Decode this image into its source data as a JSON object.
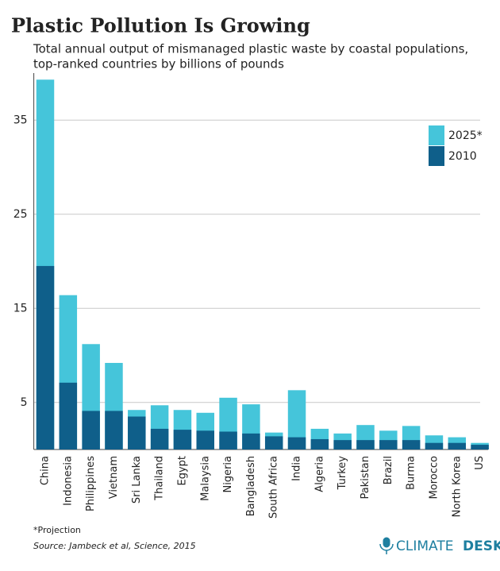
{
  "chart_data": {
    "type": "bar",
    "overlay": true,
    "title": "Plastic Pollution Is Growing",
    "subtitle": [
      "Total annual output of mismanaged plastic waste by coastal populations,",
      "top-ranked countries by billions of pounds"
    ],
    "categories": [
      "China",
      "Indonesia",
      "Philippines",
      "Vietnam",
      "Sri Lanka",
      "Thailand",
      "Egypt",
      "Malaysia",
      "Nigeria",
      "Bangladesh",
      "South Africa",
      "India",
      "Algeria",
      "Turkey",
      "Pakistan",
      "Brazil",
      "Burma",
      "Morocco",
      "North Korea",
      "US"
    ],
    "series": [
      {
        "name": "2025*",
        "color": "#45c5da",
        "values": [
          39.3,
          16.4,
          11.2,
          9.2,
          4.2,
          4.7,
          4.2,
          3.9,
          5.5,
          4.8,
          1.8,
          6.3,
          2.2,
          1.7,
          2.6,
          2.0,
          2.5,
          1.5,
          1.3,
          0.7
        ]
      },
      {
        "name": "2010",
        "color": "#0f5f8a",
        "values": [
          19.5,
          7.1,
          4.1,
          4.1,
          3.5,
          2.2,
          2.1,
          2.0,
          1.9,
          1.7,
          1.4,
          1.3,
          1.1,
          1.0,
          1.0,
          1.0,
          1.0,
          0.7,
          0.7,
          0.5
        ]
      }
    ],
    "ylim": [
      0,
      40
    ],
    "yticks": [
      5,
      15,
      25,
      35
    ],
    "grid": true,
    "legend": "top-right",
    "footnote": "*Projection",
    "source": "Source: Jambeck et al, Science, 2015",
    "logo": [
      "CLIMATE",
      "DESK"
    ]
  }
}
